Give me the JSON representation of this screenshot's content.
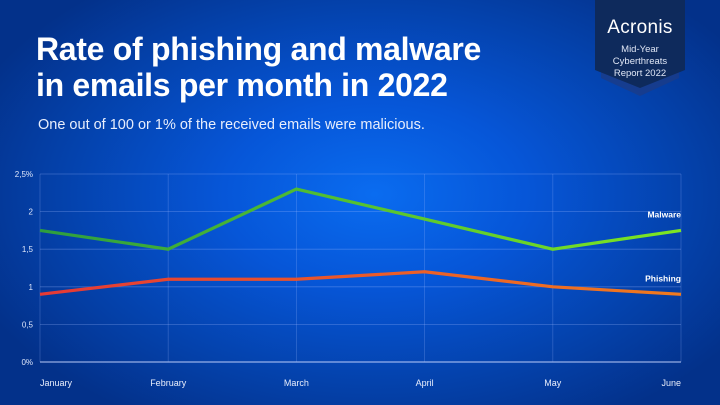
{
  "header": {
    "title": "Rate of phishing and malware\nin emails per month in 2022",
    "subtitle": "One out of 100 or 1% of the received emails were malicious."
  },
  "badge": {
    "brand": "Acronis",
    "subtitle": "Mid-Year\nCyberthreats\nReport 2022",
    "color": "#0e2a5c"
  },
  "chart_data": {
    "type": "line",
    "title": "Rate of phishing and malware in emails per month in 2022",
    "subtitle": "One out of 100 or 1% of the received emails were malicious.",
    "xlabel": "",
    "ylabel": "",
    "categories": [
      "January",
      "February",
      "March",
      "April",
      "May",
      "June"
    ],
    "y_ticks": [
      "0%",
      "0,5",
      "1",
      "1,5",
      "2",
      "2,5%"
    ],
    "y_tick_values": [
      0,
      0.5,
      1,
      1.5,
      2,
      2.5
    ],
    "ylim": [
      0,
      2.5
    ],
    "grid": true,
    "legend_position": "inline-right",
    "series": [
      {
        "name": "Malware",
        "values": [
          1.75,
          1.5,
          2.3,
          1.9,
          1.5,
          1.75
        ],
        "color_start": "#2e9e3e",
        "color_end": "#7ee622"
      },
      {
        "name": "Phishing",
        "values": [
          0.9,
          1.1,
          1.1,
          1.2,
          1.0,
          0.9
        ],
        "color_start": "#e53935",
        "color_end": "#f07a1e"
      }
    ]
  }
}
